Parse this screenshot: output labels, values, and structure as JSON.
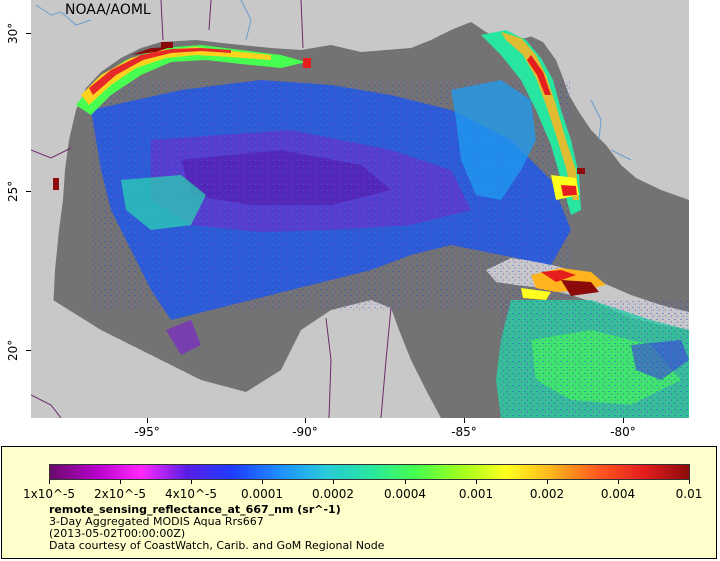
{
  "attribution": "NOAA/AOML",
  "axes": {
    "lat_labels": [
      "30°",
      "25°",
      "20°"
    ],
    "lon_labels": [
      "-95°",
      "-90°",
      "-85°",
      "-80°"
    ]
  },
  "colors": {
    "ocean_no_data": "#737373",
    "land": "#c8c8c8",
    "borders": "#6b2a6b",
    "rivers": "#6a9ed0",
    "legend_background": "#ffffcc"
  },
  "legend": {
    "title": "remote_sensing_reflectance_at_667_nm (sr^-1)",
    "dataset": "3-Day Aggregated MODIS Aqua Rrs667",
    "date": "(2013-05-02T00:00:00Z)",
    "credit": "Data courtesy of CoastWatch, Carib. and GoM Regional Node",
    "scale": "log",
    "colorbar_labels": [
      "1x10^-5",
      "2x10^-5",
      "4x10^-5",
      "0.0001",
      "0.0002",
      "0.0004",
      "0.001",
      "0.002",
      "0.004",
      "0.01"
    ],
    "colorbar_colors": [
      "#6a0a6a",
      "#b400c8",
      "#ff28ff",
      "#5a1ee6",
      "#1e3cff",
      "#1e8cff",
      "#28c8dc",
      "#28e6a0",
      "#46ff50",
      "#a0ff1e",
      "#ffff1e",
      "#ffb41e",
      "#ff5a1e",
      "#e61e1e",
      "#8c0a0a"
    ]
  }
}
